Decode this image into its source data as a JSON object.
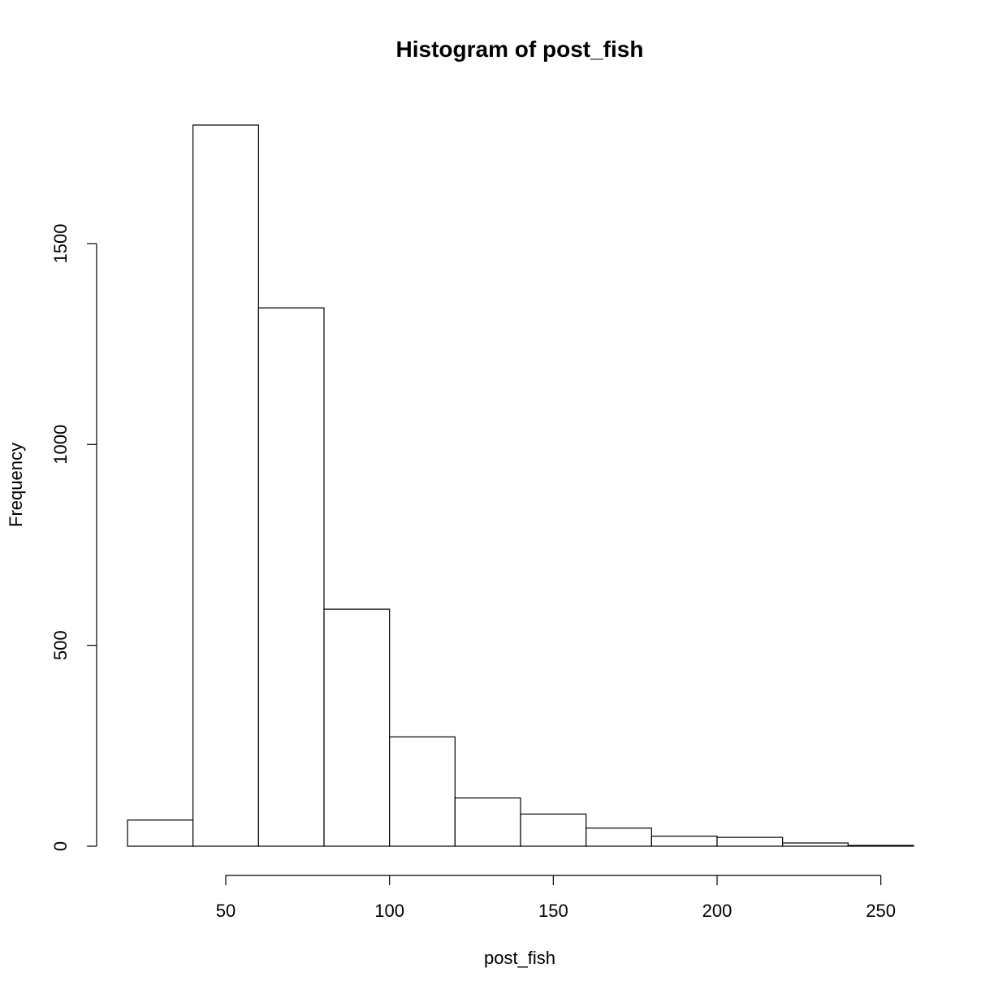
{
  "chart_data": {
    "type": "histogram",
    "title": "Histogram of post_fish",
    "xlabel": "post_fish",
    "ylabel": "Frequency",
    "bin_edges": [
      20,
      40,
      60,
      80,
      100,
      120,
      140,
      160,
      180,
      200,
      220,
      240,
      260
    ],
    "counts": [
      65,
      1795,
      1340,
      590,
      272,
      120,
      80,
      45,
      25,
      22,
      8,
      2
    ],
    "x_ticks": [
      50,
      100,
      150,
      200,
      250
    ],
    "y_ticks": [
      0,
      500,
      1000,
      1500
    ],
    "xlim": [
      20,
      260
    ],
    "ylim": [
      0,
      1795
    ],
    "grid": false,
    "legend": "none",
    "bar_fill": "#ffffff",
    "bar_stroke": "#000000"
  }
}
